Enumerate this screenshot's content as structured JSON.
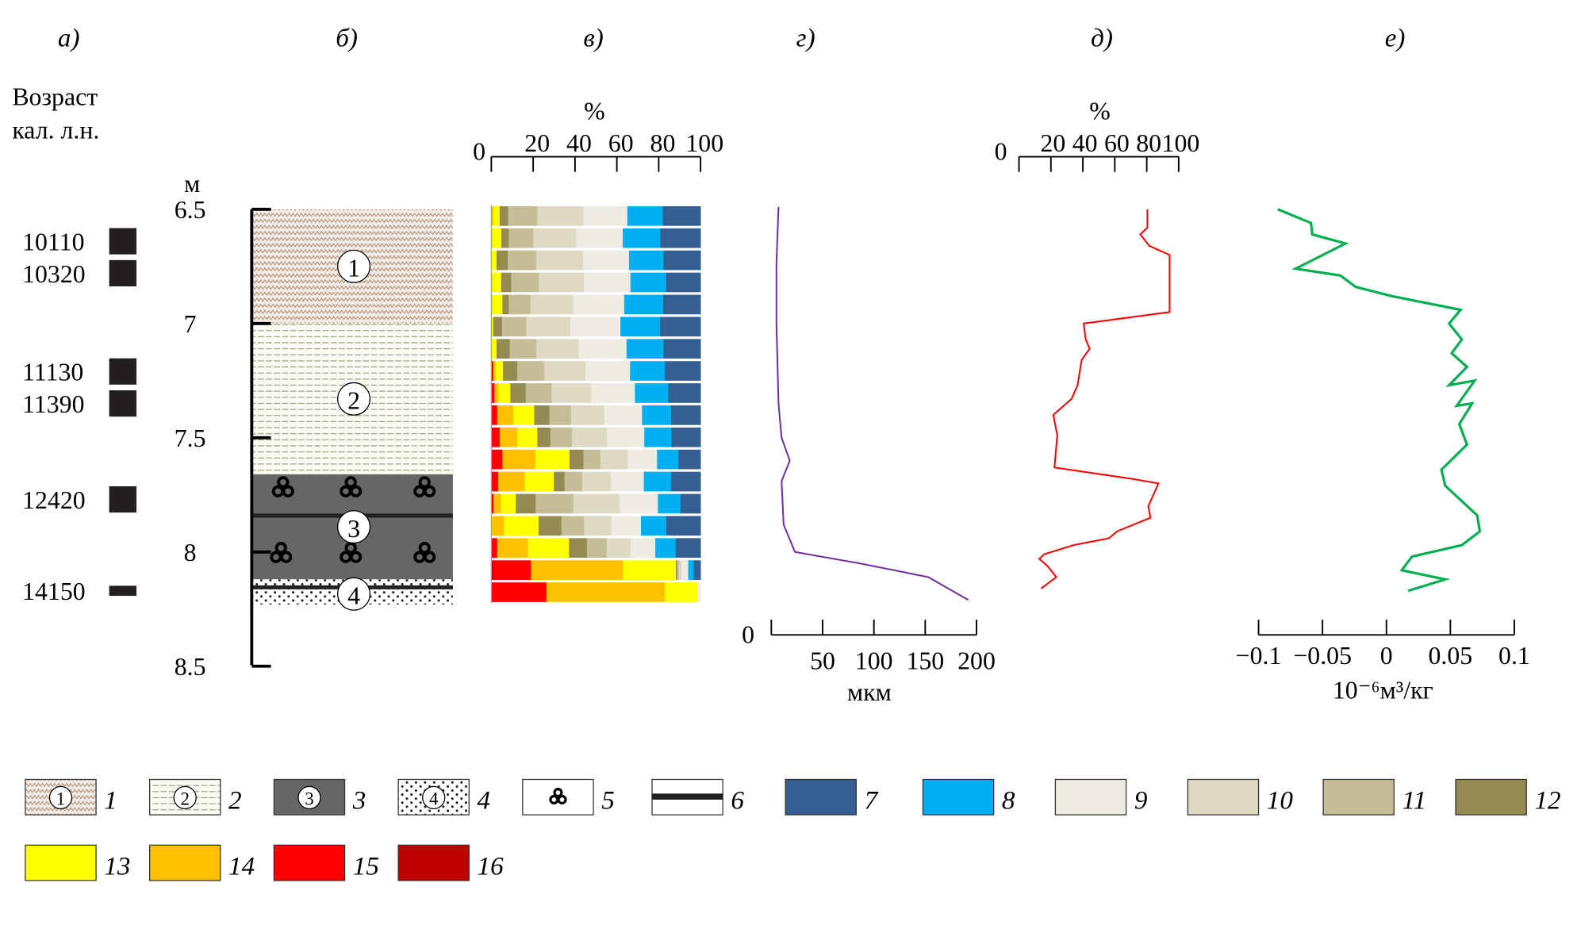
{
  "chart_data": [
    {
      "type": "table",
      "panel": "а)",
      "title": "Возраст кал. л.н.",
      "ages": [
        {
          "age": "10110",
          "depth_m": 6.64
        },
        {
          "age": "10320",
          "depth_m": 6.78
        },
        {
          "age": "11130",
          "depth_m": 7.21
        },
        {
          "age": "11390",
          "depth_m": 7.35
        },
        {
          "age": "12420",
          "depth_m": 7.77
        },
        {
          "age": "14150",
          "depth_m": 8.17
        }
      ]
    },
    {
      "type": "table",
      "panel": "б)",
      "depth_unit": "м",
      "depth_ticks": [
        "6.5",
        "7",
        "7.5",
        "8",
        "8.5"
      ],
      "ylim": [
        6.5,
        8.5
      ],
      "units": [
        {
          "label": "1",
          "top": 6.5,
          "bottom": 7.0,
          "legend": 1
        },
        {
          "label": "2",
          "top": 7.0,
          "bottom": 7.66,
          "legend": 2
        },
        {
          "label": "3",
          "top": 7.66,
          "bottom": 8.12,
          "legend": 3
        },
        {
          "label": "4",
          "top": 8.12,
          "bottom": 8.23,
          "legend": 4
        }
      ]
    },
    {
      "type": "bar",
      "stacked": true,
      "orientation": "horizontal",
      "panel": "в)",
      "xlabel": "%",
      "xticks": [
        "0",
        "20",
        "40",
        "60",
        "80",
        "100"
      ],
      "xlim": [
        0,
        100
      ],
      "series_order_legend": [
        16,
        15,
        14,
        13,
        12,
        11,
        10,
        9,
        8,
        7
      ],
      "rows": [
        [
          0,
          0,
          1,
          3,
          4,
          14,
          22,
          21,
          17,
          18
        ],
        [
          0,
          0,
          0.5,
          4.3,
          3.5,
          11.8,
          20.4,
          22.3,
          18,
          19.2
        ],
        [
          0,
          0,
          0,
          2.5,
          5.3,
          13.7,
          22.4,
          21.9,
          16.5,
          17.7
        ],
        [
          0,
          0,
          0.5,
          4.2,
          4.8,
          13.2,
          21.6,
          22.2,
          17.1,
          16.4
        ],
        [
          0,
          0,
          0.5,
          4.8,
          3,
          10.4,
          20.4,
          24.4,
          18.6,
          17.9
        ],
        [
          0,
          0,
          0,
          0.9,
          4.2,
          11.6,
          21,
          24,
          19,
          19.3
        ],
        [
          0,
          0,
          0,
          2.5,
          6.3,
          12.7,
          20.3,
          22.8,
          17.7,
          17.7
        ],
        [
          0,
          1,
          1.1,
          3.5,
          6.8,
          12.9,
          19.7,
          21.3,
          16.6,
          17.1
        ],
        [
          0,
          1.5,
          1.9,
          5.7,
          7.3,
          12.4,
          18.7,
          21,
          15.9,
          15.4
        ],
        [
          0,
          2.8,
          7.8,
          9.9,
          7.3,
          10.3,
          15.9,
          18.1,
          13.9,
          14.1
        ],
        [
          0,
          4,
          8.5,
          9.5,
          6.2,
          10.3,
          16.8,
          17.8,
          13,
          13.9
        ],
        [
          0,
          5.3,
          15.8,
          16.3,
          6.6,
          8.1,
          13.2,
          13.9,
          10.3,
          10.5
        ],
        [
          0,
          3.3,
          12.7,
          13.9,
          5.1,
          8.4,
          13.7,
          15.8,
          13,
          14.1
        ],
        [
          0,
          1.1,
          3.5,
          7.1,
          9.5,
          18,
          22.2,
          18.2,
          10.8,
          9.6
        ],
        [
          0,
          0,
          6.1,
          16.5,
          10.9,
          10.8,
          13,
          14.2,
          12.2,
          16.3
        ],
        [
          0,
          2.8,
          14.7,
          19.6,
          8.5,
          9.5,
          11.4,
          11.8,
          9.7,
          11.9
        ],
        [
          0.9,
          18,
          43.9,
          25.4,
          0.5,
          0.9,
          1.3,
          3.2,
          2.7,
          3.2
        ],
        [
          0,
          26.3,
          56.7,
          15.7,
          0,
          0,
          0,
          1.3,
          0,
          0
        ]
      ]
    },
    {
      "type": "line",
      "panel": "г)",
      "xlabel": "мкм",
      "xticks": [
        "0",
        "50",
        "100",
        "150",
        "200"
      ],
      "xlim": [
        0,
        200
      ],
      "color": "#7030a0",
      "points": [
        [
          7,
          6.49
        ],
        [
          5,
          6.74
        ],
        [
          5,
          7.0
        ],
        [
          7,
          7.35
        ],
        [
          10,
          7.5
        ],
        [
          18,
          7.6
        ],
        [
          10,
          7.69
        ],
        [
          12,
          7.88
        ],
        [
          23,
          8.0
        ],
        [
          86,
          8.05
        ],
        [
          153,
          8.11
        ],
        [
          192,
          8.21
        ]
      ]
    },
    {
      "type": "line",
      "panel": "д)",
      "xlabel": "%",
      "xticks": [
        "0",
        "20",
        "40",
        "60",
        "80",
        "100"
      ],
      "xlim": [
        0,
        100
      ],
      "color": "#ff0000",
      "points": [
        [
          80.4,
          6.5
        ],
        [
          80.4,
          6.58
        ],
        [
          76,
          6.61
        ],
        [
          81.6,
          6.66
        ],
        [
          94.3,
          6.7
        ],
        [
          94.3,
          6.95
        ],
        [
          40.5,
          7.0
        ],
        [
          41.8,
          7.07
        ],
        [
          44.3,
          7.11
        ],
        [
          39.2,
          7.16
        ],
        [
          36.7,
          7.27
        ],
        [
          32.9,
          7.33
        ],
        [
          21.5,
          7.4
        ],
        [
          24,
          7.49
        ],
        [
          22.2,
          7.63
        ],
        [
          70.9,
          7.68
        ],
        [
          87.3,
          7.7
        ],
        [
          81,
          7.8
        ],
        [
          82.3,
          7.85
        ],
        [
          61.4,
          7.91
        ],
        [
          56.3,
          7.94
        ],
        [
          34.2,
          7.97
        ],
        [
          15.8,
          8.01
        ],
        [
          12.7,
          8.03
        ],
        [
          17.7,
          8.06
        ],
        [
          23.4,
          8.11
        ],
        [
          13.9,
          8.16
        ]
      ]
    },
    {
      "type": "line",
      "panel": "е)",
      "xlabel": "10⁻⁶м³/кг",
      "xticks": [
        "−0.1",
        "−0.05",
        "0",
        "0.05",
        "0.1"
      ],
      "xlim": [
        -0.1,
        0.1
      ],
      "color": "#00b050",
      "points": [
        [
          -0.085,
          6.5
        ],
        [
          -0.059,
          6.56
        ],
        [
          -0.058,
          6.61
        ],
        [
          -0.032,
          6.65
        ],
        [
          -0.071,
          6.76
        ],
        [
          -0.036,
          6.79
        ],
        [
          -0.024,
          6.84
        ],
        [
          0.004,
          6.88
        ],
        [
          0.058,
          6.94
        ],
        [
          0.049,
          7.0
        ],
        [
          0.059,
          7.07
        ],
        [
          0.051,
          7.13
        ],
        [
          0.063,
          7.19
        ],
        [
          0.049,
          7.27
        ],
        [
          0.069,
          7.25
        ],
        [
          0.055,
          7.36
        ],
        [
          0.067,
          7.35
        ],
        [
          0.057,
          7.44
        ],
        [
          0.063,
          7.53
        ],
        [
          0.043,
          7.64
        ],
        [
          0.046,
          7.71
        ],
        [
          0.071,
          7.84
        ],
        [
          0.073,
          7.91
        ],
        [
          0.059,
          7.97
        ],
        [
          0.02,
          8.02
        ],
        [
          0.012,
          8.08
        ],
        [
          0.046,
          8.12
        ],
        [
          0.017,
          8.17
        ]
      ]
    }
  ],
  "headers": {
    "a": "а)",
    "b": "б)",
    "v": "в)",
    "g": "г)",
    "d": "д)",
    "e": "е)"
  },
  "age_title_1": "Возраст",
  "age_title_2": "кал. л.н.",
  "legend": [
    {
      "n": "1",
      "kind": "zigzag",
      "mark": "1"
    },
    {
      "n": "2",
      "kind": "lines",
      "mark": "2"
    },
    {
      "n": "3",
      "kind": "dark",
      "mark": "3"
    },
    {
      "n": "4",
      "kind": "dots",
      "mark": "4"
    },
    {
      "n": "5",
      "kind": "trefoil"
    },
    {
      "n": "6",
      "kind": "bar"
    },
    {
      "n": "7",
      "color": "#355f91"
    },
    {
      "n": "8",
      "color": "#00b0f0"
    },
    {
      "n": "9",
      "color": "#eeece1"
    },
    {
      "n": "10",
      "color": "#ddd9c3"
    },
    {
      "n": "11",
      "color": "#c4bd97"
    },
    {
      "n": "12",
      "color": "#948a54"
    },
    {
      "n": "13",
      "color": "#ffff00"
    },
    {
      "n": "14",
      "color": "#ffc000"
    },
    {
      "n": "15",
      "color": "#ff0000"
    },
    {
      "n": "16",
      "color": "#c00000"
    }
  ],
  "segment_colors": [
    "#c00000",
    "#ff0000",
    "#ffc000",
    "#ffff00",
    "#948a54",
    "#c4bd97",
    "#ddd9c3",
    "#eeece1",
    "#00b0f0",
    "#355f91"
  ]
}
